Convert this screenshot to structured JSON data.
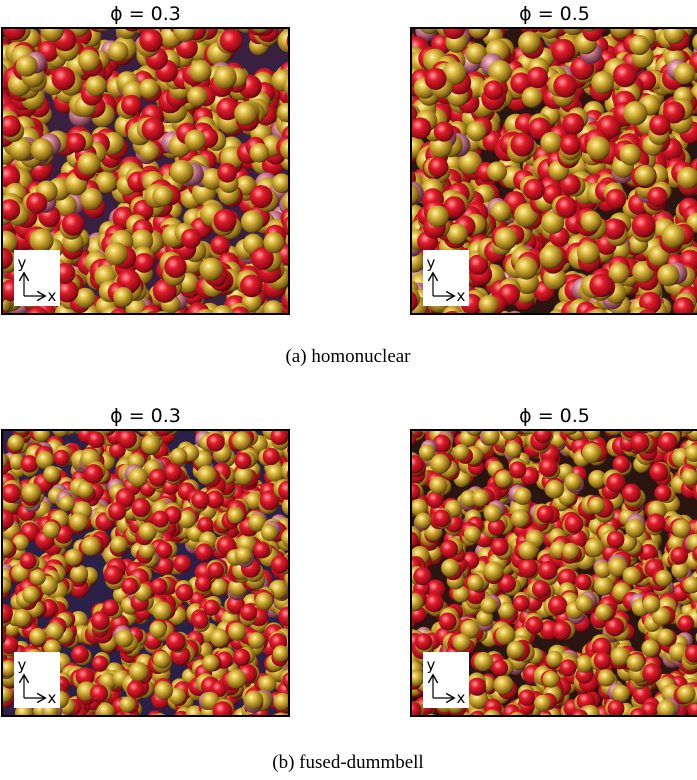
{
  "rows": [
    {
      "caption": "(a)  homonuclear",
      "panels": [
        {
          "title": "ϕ = 0.3",
          "axis_y": "y",
          "axis_x": "x"
        },
        {
          "title": "ϕ = 0.5",
          "axis_y": "y",
          "axis_x": "x"
        }
      ]
    },
    {
      "caption": "(b)  fused-dummbell",
      "panels": [
        {
          "title": "ϕ = 0.3",
          "axis_y": "y",
          "axis_x": "x"
        },
        {
          "title": "ϕ = 0.5",
          "axis_y": "y",
          "axis_x": "x"
        }
      ]
    }
  ]
}
